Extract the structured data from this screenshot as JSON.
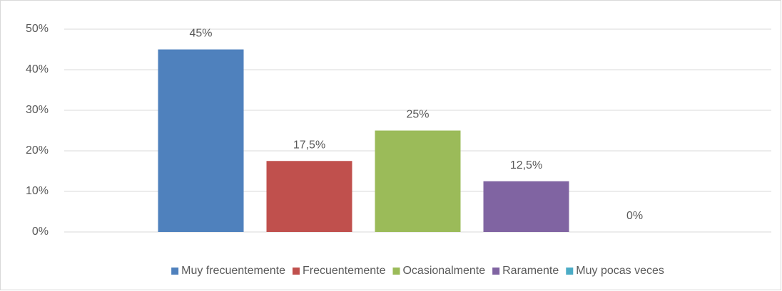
{
  "chart_data": {
    "type": "bar",
    "series": [
      {
        "name": "Muy frecuentemente",
        "color": "#4f81bd",
        "values": [
          45
        ],
        "value_labels": [
          "45%"
        ]
      },
      {
        "name": "Frecuentemente",
        "color": "#c0504d",
        "values": [
          17.5
        ],
        "value_labels": [
          "17,5%"
        ]
      },
      {
        "name": "Ocasionalmente",
        "color": "#9bbb59",
        "values": [
          25
        ],
        "value_labels": [
          "25%"
        ]
      },
      {
        "name": "Raramente",
        "color": "#8064a2",
        "values": [
          12.5
        ],
        "value_labels": [
          "12,5%"
        ]
      },
      {
        "name": "Muy pocas veces",
        "color": "#4bacc6",
        "values": [
          0
        ],
        "value_labels": [
          "0%"
        ]
      }
    ],
    "ylim": [
      0,
      50
    ],
    "yticks": [
      {
        "value": 0,
        "label": "0%"
      },
      {
        "value": 10,
        "label": "10%"
      },
      {
        "value": 20,
        "label": "20%"
      },
      {
        "value": 30,
        "label": "30%"
      },
      {
        "value": 40,
        "label": "40%"
      },
      {
        "value": 50,
        "label": "50%"
      }
    ],
    "grid": true,
    "legend": "bottom"
  }
}
